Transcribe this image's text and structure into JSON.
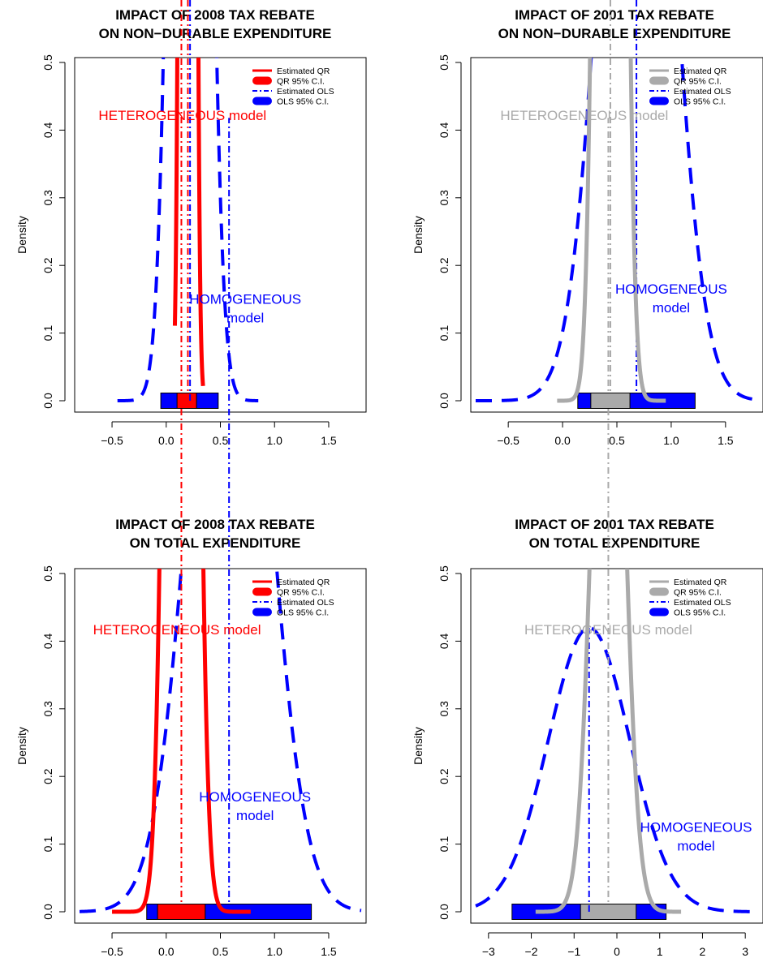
{
  "chart_data": [
    {
      "type": "line",
      "title": [
        "IMPACT OF 2008 TAX REBATE",
        "ON NON−DURABLE EXPENDITURE"
      ],
      "ylabel": "Density",
      "xlim": [
        -0.8,
        1.8
      ],
      "ylim": [
        0,
        0.5
      ],
      "xticks": [
        "−0.5",
        "0.0",
        "0.5",
        "1.0",
        "1.5"
      ],
      "xtick_values": [
        -0.5,
        0,
        0.5,
        1,
        1.5
      ],
      "yticks": [
        "0.0",
        "0.1",
        "0.2",
        "0.3",
        "0.4",
        "0.5"
      ],
      "ytick_values": [
        0,
        0.1,
        0.2,
        0.3,
        0.4,
        0.5
      ],
      "qr_color": "#ff0000",
      "ols_color": "#0000ff",
      "qr": {
        "mean": 0.2,
        "sd": 0.04,
        "range": [
          0.08,
          0.34
        ],
        "ci": [
          0.1,
          0.28
        ]
      },
      "ols": {
        "mean": 0.22,
        "sd": 0.13,
        "range": [
          -0.45,
          0.85
        ],
        "ci": [
          -0.05,
          0.48
        ]
      },
      "legend": [
        "Estimated QR",
        "QR 95% C.I.",
        "Estimated OLS",
        "OLS 95% C.I."
      ],
      "annotations": {
        "heterogeneous": "HETEROGENEOUS model",
        "homogeneous": [
          "HOMOGENEOUS",
          "model"
        ]
      },
      "ann_pos": {
        "het": [
          0.15,
          0.415
        ],
        "hom": [
          0.73,
          0.143
        ]
      }
    },
    {
      "type": "line",
      "title": [
        "IMPACT OF 2001 TAX REBATE",
        "ON NON−DURABLE EXPENDITURE"
      ],
      "ylabel": "Density",
      "xlim": [
        -0.8,
        1.8
      ],
      "ylim": [
        0,
        0.5
      ],
      "xticks": [
        "−0.5",
        "0.0",
        "0.5",
        "1.0",
        "1.5"
      ],
      "xtick_values": [
        -0.5,
        0,
        0.5,
        1,
        1.5
      ],
      "yticks": [
        "0.0",
        "0.1",
        "0.2",
        "0.3",
        "0.4",
        "0.5"
      ],
      "ytick_values": [
        0,
        0.1,
        0.2,
        0.3,
        0.4,
        0.5
      ],
      "qr_color": "#aaaaaa",
      "ols_color": "#0000ff",
      "qr": {
        "mean": 0.44,
        "sd": 0.09,
        "range": [
          -0.05,
          0.95
        ],
        "ci": [
          0.26,
          0.62
        ]
      },
      "ols": {
        "mean": 0.68,
        "sd": 0.3,
        "range": [
          -0.8,
          1.8
        ],
        "ci": [
          0.14,
          1.22
        ]
      },
      "legend": [
        "Estimated QR",
        "QR 95% C.I.",
        "Estimated OLS",
        "OLS 95% C.I."
      ],
      "annotations": {
        "heterogeneous": "HETEROGENEOUS model",
        "homogeneous": [
          "HOMOGENEOUS",
          "model"
        ]
      },
      "ann_pos": {
        "het": [
          0.2,
          0.415
        ],
        "hom": [
          1.0,
          0.158
        ]
      }
    },
    {
      "type": "line",
      "title": [
        "IMPACT OF 2008 TAX REBATE",
        "ON TOTAL EXPENDITURE"
      ],
      "ylabel": "Density",
      "xlim": [
        -0.8,
        1.8
      ],
      "ylim": [
        0,
        0.5
      ],
      "xticks": [
        "−0.5",
        "0.0",
        "0.5",
        "1.0",
        "1.5"
      ],
      "xtick_values": [
        -0.5,
        0,
        0.5,
        1,
        1.5
      ],
      "yticks": [
        "0.0",
        "0.1",
        "0.2",
        "0.3",
        "0.4",
        "0.5"
      ],
      "ytick_values": [
        0,
        0.1,
        0.2,
        0.3,
        0.4,
        0.5
      ],
      "qr_color": "#ff0000",
      "ols_color": "#0000ff",
      "qr": {
        "mean": 0.14,
        "sd": 0.1,
        "range": [
          -0.5,
          0.78
        ],
        "ci": [
          -0.08,
          0.36
        ]
      },
      "ols": {
        "mean": 0.58,
        "sd": 0.34,
        "range": [
          -0.8,
          1.8
        ],
        "ci": [
          -0.18,
          1.34
        ]
      },
      "legend": [
        "Estimated QR",
        "QR 95% C.I.",
        "Estimated OLS",
        "OLS 95% C.I."
      ],
      "annotations": {
        "heterogeneous": "HETEROGENEOUS model",
        "homogeneous": [
          "HOMOGENEOUS",
          "model"
        ]
      },
      "ann_pos": {
        "het": [
          0.1,
          0.41
        ],
        "hom": [
          0.82,
          0.163
        ]
      }
    },
    {
      "type": "line",
      "title": [
        "IMPACT OF 2001 TAX REBATE",
        "ON TOTAL EXPENDITURE"
      ],
      "ylabel": "Density",
      "xlim": [
        -3.3,
        3.3
      ],
      "ylim": [
        0,
        0.5
      ],
      "xticks": [
        "−3",
        "−2",
        "−1",
        "0",
        "1",
        "2",
        "3"
      ],
      "xtick_values": [
        -3,
        -2,
        -1,
        0,
        1,
        2,
        3
      ],
      "yticks": [
        "0.0",
        "0.1",
        "0.2",
        "0.3",
        "0.4",
        "0.5"
      ],
      "ytick_values": [
        0,
        0.1,
        0.2,
        0.3,
        0.4,
        0.5
      ],
      "qr_color": "#aaaaaa",
      "ols_color": "#0000ff",
      "qr": {
        "mean": -0.2,
        "sd": 0.34,
        "range": [
          -1.9,
          1.5
        ],
        "ci": [
          -0.85,
          0.45
        ]
      },
      "ols": {
        "mean": -0.65,
        "sd": 0.95,
        "range": [
          -3.3,
          3.3
        ],
        "ci": [
          -2.45,
          1.15
        ]
      },
      "legend": [
        "Estimated QR",
        "QR 95% C.I.",
        "Estimated OLS",
        "OLS 95% C.I."
      ],
      "annotations": {
        "heterogeneous": "HETEROGENEOUS model",
        "homogeneous": [
          "HOMOGENEOUS",
          "model"
        ]
      },
      "ann_pos": {
        "het": [
          -0.2,
          0.41
        ],
        "hom": [
          1.85,
          0.118
        ]
      }
    }
  ]
}
